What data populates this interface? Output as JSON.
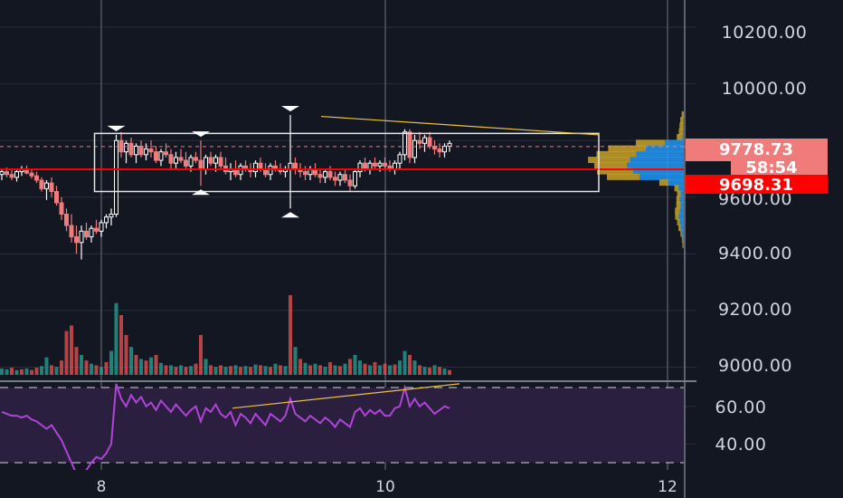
{
  "colors": {
    "background": "#131722",
    "grid": "#2a2e39",
    "up": "#ffffff",
    "down": "#ef7b7b",
    "vol_up": "#26a69a",
    "vol_down": "#ef5350",
    "price_line": "#ff0000",
    "trendline": "#f0c040",
    "rsi_line": "#b044d8",
    "rsi_band": "#2b1f3f",
    "badge_last": "#ef7b7b",
    "badge_level": "#ff0000",
    "vp_up": "#2196f3",
    "vp_down": "#c9a227"
  },
  "price_axis": {
    "ticks": [
      "10200.00",
      "10000.00",
      "9600.00",
      "9400.00",
      "9200.00",
      "9000.00"
    ],
    "badges": {
      "last_price": "9778.73",
      "countdown": "58:54",
      "level": "9698.31"
    }
  },
  "rsi_axis": {
    "ticks": [
      "60.00",
      "40.00"
    ]
  },
  "time_axis": {
    "ticks": [
      "8",
      "10",
      "12"
    ]
  },
  "chart_data": {
    "type": "candlestick",
    "price_range": [
      8960,
      10280
    ],
    "last_price": 9778.73,
    "horizontal_level": 9698.31,
    "rsi_range": [
      30,
      70
    ],
    "candles": [
      [
        9680,
        9700,
        9660,
        9690
      ],
      [
        9690,
        9705,
        9670,
        9680
      ],
      [
        9680,
        9695,
        9660,
        9670
      ],
      [
        9670,
        9700,
        9655,
        9690
      ],
      [
        9690,
        9710,
        9675,
        9700
      ],
      [
        9700,
        9712,
        9680,
        9685
      ],
      [
        9685,
        9700,
        9665,
        9675
      ],
      [
        9675,
        9690,
        9650,
        9660
      ],
      [
        9660,
        9670,
        9620,
        9630
      ],
      [
        9630,
        9660,
        9590,
        9650
      ],
      [
        9650,
        9670,
        9600,
        9620
      ],
      [
        9620,
        9640,
        9570,
        9580
      ],
      [
        9580,
        9600,
        9520,
        9540
      ],
      [
        9540,
        9560,
        9480,
        9500
      ],
      [
        9500,
        9540,
        9440,
        9460
      ],
      [
        9460,
        9500,
        9400,
        9440
      ],
      [
        9440,
        9500,
        9380,
        9480
      ],
      [
        9480,
        9510,
        9450,
        9460
      ],
      [
        9460,
        9500,
        9440,
        9490
      ],
      [
        9490,
        9520,
        9470,
        9480
      ],
      [
        9480,
        9520,
        9460,
        9510
      ],
      [
        9510,
        9540,
        9490,
        9530
      ],
      [
        9530,
        9560,
        9500,
        9540
      ],
      [
        9540,
        9820,
        9530,
        9800
      ],
      [
        9800,
        9830,
        9740,
        9760
      ],
      [
        9760,
        9800,
        9720,
        9790
      ],
      [
        9790,
        9810,
        9740,
        9750
      ],
      [
        9750,
        9790,
        9720,
        9780
      ],
      [
        9780,
        9800,
        9740,
        9750
      ],
      [
        9750,
        9790,
        9730,
        9770
      ],
      [
        9770,
        9800,
        9740,
        9760
      ],
      [
        9760,
        9780,
        9720,
        9730
      ],
      [
        9730,
        9770,
        9710,
        9760
      ],
      [
        9760,
        9790,
        9740,
        9750
      ],
      [
        9750,
        9770,
        9700,
        9720
      ],
      [
        9720,
        9760,
        9700,
        9740
      ],
      [
        9740,
        9770,
        9720,
        9730
      ],
      [
        9730,
        9760,
        9700,
        9710
      ],
      [
        9710,
        9750,
        9690,
        9740
      ],
      [
        9740,
        9760,
        9720,
        9730
      ],
      [
        9730,
        9800,
        9640,
        9700
      ],
      [
        9700,
        9750,
        9680,
        9740
      ],
      [
        9740,
        9760,
        9710,
        9720
      ],
      [
        9720,
        9750,
        9690,
        9740
      ],
      [
        9740,
        9760,
        9700,
        9710
      ],
      [
        9710,
        9740,
        9680,
        9690
      ],
      [
        9690,
        9720,
        9660,
        9700
      ],
      [
        9700,
        9730,
        9670,
        9680
      ],
      [
        9680,
        9720,
        9660,
        9710
      ],
      [
        9710,
        9730,
        9690,
        9700
      ],
      [
        9700,
        9720,
        9670,
        9690
      ],
      [
        9690,
        9730,
        9670,
        9720
      ],
      [
        9720,
        9740,
        9690,
        9700
      ],
      [
        9700,
        9720,
        9670,
        9680
      ],
      [
        9680,
        9720,
        9660,
        9710
      ],
      [
        9710,
        9730,
        9690,
        9700
      ],
      [
        9700,
        9720,
        9680,
        9690
      ],
      [
        9690,
        9710,
        9670,
        9700
      ],
      [
        9700,
        9890,
        9560,
        9720
      ],
      [
        9720,
        9740,
        9680,
        9700
      ],
      [
        9700,
        9720,
        9670,
        9690
      ],
      [
        9690,
        9710,
        9660,
        9680
      ],
      [
        9680,
        9710,
        9660,
        9700
      ],
      [
        9700,
        9720,
        9670,
        9680
      ],
      [
        9680,
        9700,
        9650,
        9670
      ],
      [
        9670,
        9700,
        9650,
        9690
      ],
      [
        9690,
        9710,
        9660,
        9670
      ],
      [
        9670,
        9690,
        9640,
        9660
      ],
      [
        9660,
        9690,
        9640,
        9680
      ],
      [
        9680,
        9700,
        9650,
        9660
      ],
      [
        9660,
        9680,
        9620,
        9640
      ],
      [
        9640,
        9700,
        9630,
        9690
      ],
      [
        9690,
        9730,
        9670,
        9720
      ],
      [
        9720,
        9740,
        9690,
        9700
      ],
      [
        9700,
        9730,
        9680,
        9720
      ],
      [
        9720,
        9740,
        9700,
        9710
      ],
      [
        9710,
        9730,
        9690,
        9720
      ],
      [
        9720,
        9740,
        9700,
        9710
      ],
      [
        9710,
        9730,
        9690,
        9700
      ],
      [
        9700,
        9730,
        9680,
        9720
      ],
      [
        9720,
        9760,
        9700,
        9750
      ],
      [
        9750,
        9840,
        9730,
        9830
      ],
      [
        9830,
        9840,
        9720,
        9740
      ],
      [
        9740,
        9820,
        9720,
        9800
      ],
      [
        9800,
        9830,
        9770,
        9790
      ],
      [
        9790,
        9820,
        9760,
        9810
      ],
      [
        9810,
        9830,
        9770,
        9780
      ],
      [
        9780,
        9800,
        9750,
        9770
      ],
      [
        9770,
        9790,
        9740,
        9760
      ],
      [
        9760,
        9790,
        9740,
        9780
      ],
      [
        9780,
        9800,
        9760,
        9790
      ]
    ],
    "volume": [
      [
        0.08,
        1
      ],
      [
        0.07,
        1
      ],
      [
        0.09,
        0
      ],
      [
        0.06,
        1
      ],
      [
        0.07,
        0
      ],
      [
        0.08,
        1
      ],
      [
        0.06,
        0
      ],
      [
        0.09,
        0
      ],
      [
        0.11,
        1
      ],
      [
        0.22,
        1
      ],
      [
        0.12,
        0
      ],
      [
        0.1,
        1
      ],
      [
        0.18,
        0
      ],
      [
        0.55,
        0
      ],
      [
        0.62,
        0
      ],
      [
        0.35,
        0
      ],
      [
        0.25,
        1
      ],
      [
        0.18,
        0
      ],
      [
        0.14,
        1
      ],
      [
        0.12,
        0
      ],
      [
        0.1,
        1
      ],
      [
        0.16,
        0
      ],
      [
        0.3,
        1
      ],
      [
        0.9,
        1
      ],
      [
        0.75,
        0
      ],
      [
        0.5,
        0
      ],
      [
        0.35,
        1
      ],
      [
        0.25,
        0
      ],
      [
        0.2,
        1
      ],
      [
        0.18,
        0
      ],
      [
        0.22,
        1
      ],
      [
        0.25,
        0
      ],
      [
        0.15,
        1
      ],
      [
        0.12,
        0
      ],
      [
        0.12,
        1
      ],
      [
        0.1,
        0
      ],
      [
        0.12,
        1
      ],
      [
        0.1,
        0
      ],
      [
        0.11,
        1
      ],
      [
        0.14,
        0
      ],
      [
        0.5,
        0
      ],
      [
        0.2,
        1
      ],
      [
        0.12,
        0
      ],
      [
        0.1,
        1
      ],
      [
        0.12,
        0
      ],
      [
        0.1,
        1
      ],
      [
        0.11,
        0
      ],
      [
        0.12,
        1
      ],
      [
        0.1,
        0
      ],
      [
        0.11,
        1
      ],
      [
        0.1,
        0
      ],
      [
        0.13,
        1
      ],
      [
        0.12,
        0
      ],
      [
        0.11,
        1
      ],
      [
        0.1,
        0
      ],
      [
        0.14,
        1
      ],
      [
        0.12,
        0
      ],
      [
        0.11,
        1
      ],
      [
        1.0,
        0
      ],
      [
        0.35,
        1
      ],
      [
        0.2,
        0
      ],
      [
        0.15,
        1
      ],
      [
        0.12,
        0
      ],
      [
        0.14,
        1
      ],
      [
        0.12,
        0
      ],
      [
        0.1,
        1
      ],
      [
        0.16,
        0
      ],
      [
        0.12,
        1
      ],
      [
        0.11,
        0
      ],
      [
        0.14,
        1
      ],
      [
        0.2,
        0
      ],
      [
        0.25,
        1
      ],
      [
        0.18,
        1
      ],
      [
        0.14,
        0
      ],
      [
        0.12,
        1
      ],
      [
        0.16,
        0
      ],
      [
        0.12,
        1
      ],
      [
        0.14,
        0
      ],
      [
        0.12,
        1
      ],
      [
        0.13,
        0
      ],
      [
        0.18,
        1
      ],
      [
        0.3,
        1
      ],
      [
        0.25,
        0
      ],
      [
        0.18,
        1
      ],
      [
        0.12,
        0
      ],
      [
        0.1,
        1
      ],
      [
        0.09,
        0
      ],
      [
        0.12,
        1
      ],
      [
        0.1,
        0
      ],
      [
        0.08,
        1
      ],
      [
        0.06,
        0
      ]
    ],
    "rsi": [
      57,
      56,
      55,
      55,
      54,
      55,
      53,
      52,
      50,
      48,
      50,
      46,
      42,
      36,
      30,
      22,
      20,
      26,
      30,
      33,
      32,
      35,
      40,
      72,
      64,
      60,
      66,
      62,
      65,
      60,
      62,
      58,
      63,
      60,
      57,
      61,
      58,
      55,
      58,
      60,
      52,
      59,
      57,
      61,
      56,
      54,
      57,
      50,
      56,
      54,
      51,
      56,
      53,
      50,
      56,
      54,
      52,
      55,
      64,
      56,
      54,
      52,
      55,
      53,
      51,
      54,
      52,
      49,
      53,
      51,
      49,
      57,
      59,
      55,
      58,
      56,
      58,
      55,
      55,
      59,
      60,
      70,
      60,
      64,
      60,
      62,
      59,
      56,
      58,
      60,
      59
    ],
    "volume_profile": [
      [
        9890,
        0.03,
        0.0
      ],
      [
        9870,
        0.04,
        0.01
      ],
      [
        9850,
        0.05,
        0.01
      ],
      [
        9830,
        0.06,
        0.01
      ],
      [
        9810,
        0.08,
        0.02
      ],
      [
        9790,
        0.4,
        0.3
      ],
      [
        9770,
        0.52,
        0.6
      ],
      [
        9750,
        0.55,
        0.75
      ],
      [
        9730,
        0.58,
        0.85
      ],
      [
        9710,
        0.45,
        0.9
      ],
      [
        9690,
        0.5,
        0.8
      ],
      [
        9670,
        0.45,
        0.7
      ],
      [
        9650,
        0.12,
        0.25
      ],
      [
        9630,
        0.06,
        0.08
      ],
      [
        9610,
        0.05,
        0.05
      ],
      [
        9590,
        0.05,
        0.06
      ],
      [
        9570,
        0.06,
        0.05
      ],
      [
        9550,
        0.07,
        0.06
      ],
      [
        9530,
        0.05,
        0.08
      ],
      [
        9510,
        0.04,
        0.06
      ],
      [
        9490,
        0.03,
        0.05
      ],
      [
        9470,
        0.02,
        0.03
      ],
      [
        9450,
        0.01,
        0.02
      ],
      [
        9430,
        0.01,
        0.01
      ]
    ],
    "range_box": [
      23,
      120,
      9620,
      9825
    ],
    "top_trendline": [
      [
        66,
        9885
      ],
      [
        120,
        9820
      ]
    ],
    "rsi_trendline": [
      [
        60,
        59
      ],
      [
        112,
        72
      ]
    ],
    "markers": [
      {
        "i": 23,
        "top": true
      },
      {
        "i": 40,
        "top": true
      },
      {
        "i": 40,
        "top": false
      },
      {
        "i": 58,
        "top": true
      },
      {
        "i": 58,
        "top": false
      }
    ]
  }
}
